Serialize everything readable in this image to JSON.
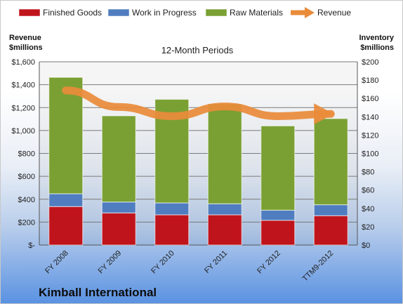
{
  "chart_data": {
    "type": "bar",
    "stacked": true,
    "title": "",
    "subtitle": "12-Month Periods",
    "company": "Kimball International",
    "categories": [
      "FY 2008",
      "FY 2009",
      "FY 2010",
      "FY 2011",
      "FY 2012",
      "TTM9-2012"
    ],
    "left_axis": {
      "title_lines": [
        "Revenue",
        "$millions"
      ],
      "range": [
        0,
        1600
      ],
      "ticks": [
        0,
        200,
        400,
        600,
        800,
        1000,
        1200,
        1400,
        1600
      ],
      "tick_labels": [
        "$-",
        "$200",
        "$400",
        "$600",
        "$800",
        "$1,000",
        "$1,200",
        "$1,400",
        "$1,600"
      ]
    },
    "right_axis": {
      "title_lines": [
        "Inventory",
        "$millions"
      ],
      "range": [
        0,
        200
      ],
      "ticks": [
        0,
        20,
        40,
        60,
        80,
        100,
        120,
        140,
        160,
        180,
        200
      ],
      "tick_labels": [
        "$0",
        "$20",
        "$40",
        "$60",
        "$80",
        "$100",
        "$120",
        "$140",
        "$160",
        "$180",
        "$200"
      ]
    },
    "grid": true,
    "legend_position": "top",
    "series": [
      {
        "name": "Finished Goods",
        "kind": "bar",
        "axis": "right",
        "color": "#c0141c",
        "values": [
          42,
          35,
          33,
          33,
          27,
          32
        ]
      },
      {
        "name": "Work in Progress",
        "kind": "bar",
        "axis": "right",
        "color": "#4f7dc0",
        "values": [
          14,
          12,
          13,
          12,
          11,
          12
        ]
      },
      {
        "name": "Raw Materials",
        "kind": "bar",
        "axis": "right",
        "color": "#7aa033",
        "values": [
          127,
          94,
          113,
          109,
          92,
          94
        ]
      },
      {
        "name": "Revenue",
        "kind": "line",
        "axis": "left",
        "color": "#e98b3a",
        "values": [
          1350,
          1205,
          1125,
          1210,
          1125,
          1145
        ]
      }
    ]
  }
}
